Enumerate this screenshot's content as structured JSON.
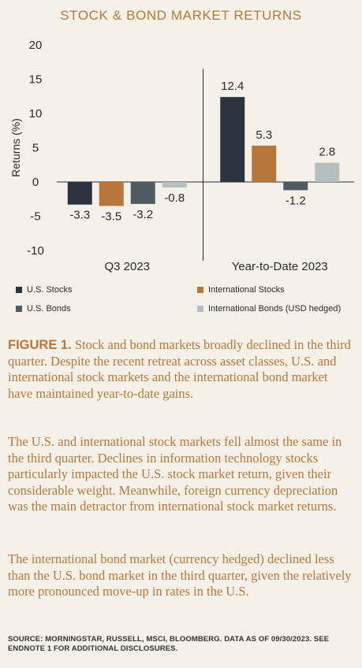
{
  "chart_data": {
    "type": "bar",
    "title": "STOCK & BOND MARKET RETURNS",
    "ylabel": "Returns (%)",
    "ylim": [
      -10,
      20
    ],
    "yticks": [
      "20",
      "15",
      "10",
      "5",
      "0",
      "-5",
      "-10"
    ],
    "categories": [
      "Q3 2023",
      "Year-to-Date 2023"
    ],
    "series": [
      {
        "name": "U.S. Stocks",
        "color": "#2b3240",
        "values": [
          -3.3,
          12.4
        ],
        "labels": [
          "-3.3",
          "12.4"
        ]
      },
      {
        "name": "International Stocks",
        "color": "#b8763a",
        "values": [
          -3.5,
          5.3
        ],
        "labels": [
          "-3.5",
          "5.3"
        ]
      },
      {
        "name": "U.S. Bonds",
        "color": "#4f5b62",
        "values": [
          -3.2,
          -1.2
        ],
        "labels": [
          "-3.2",
          "-1.2"
        ]
      },
      {
        "name": "International Bonds (USD hedged)",
        "color": "#b4bfbf",
        "values": [
          -0.8,
          2.8
        ],
        "labels": [
          "-0.8",
          "2.8"
        ]
      }
    ],
    "grid": false,
    "legend": "bottom"
  },
  "figure": {
    "label": "FIGURE 1.",
    "caption": "Stock and bond markets broadly declined in the third quarter. Despite the recent retreat across asset classes, U.S. and international stock markets and the international bond market have maintained year-to-date gains."
  },
  "paragraphs": [
    "The U.S. and international stock markets fell almost the same in the third quarter. Declines in information technology stocks particularly impacted the U.S. stock market return, given their considerable weight. Meanwhile, foreign currency depreciation was the main detractor from international stock market returns.",
    "The international bond market (currency hedged) declined less than the U.S. bond market in the third quarter, given the relatively more pronounced move-up in rates in the U.S."
  ],
  "source": "SOURCE: MORNINGSTAR, RUSSELL, MSCI, BLOOMBERG. DATA AS OF 09/30/2023. SEE ENDNOTE 1 FOR ADDITIONAL DISCLOSURES."
}
